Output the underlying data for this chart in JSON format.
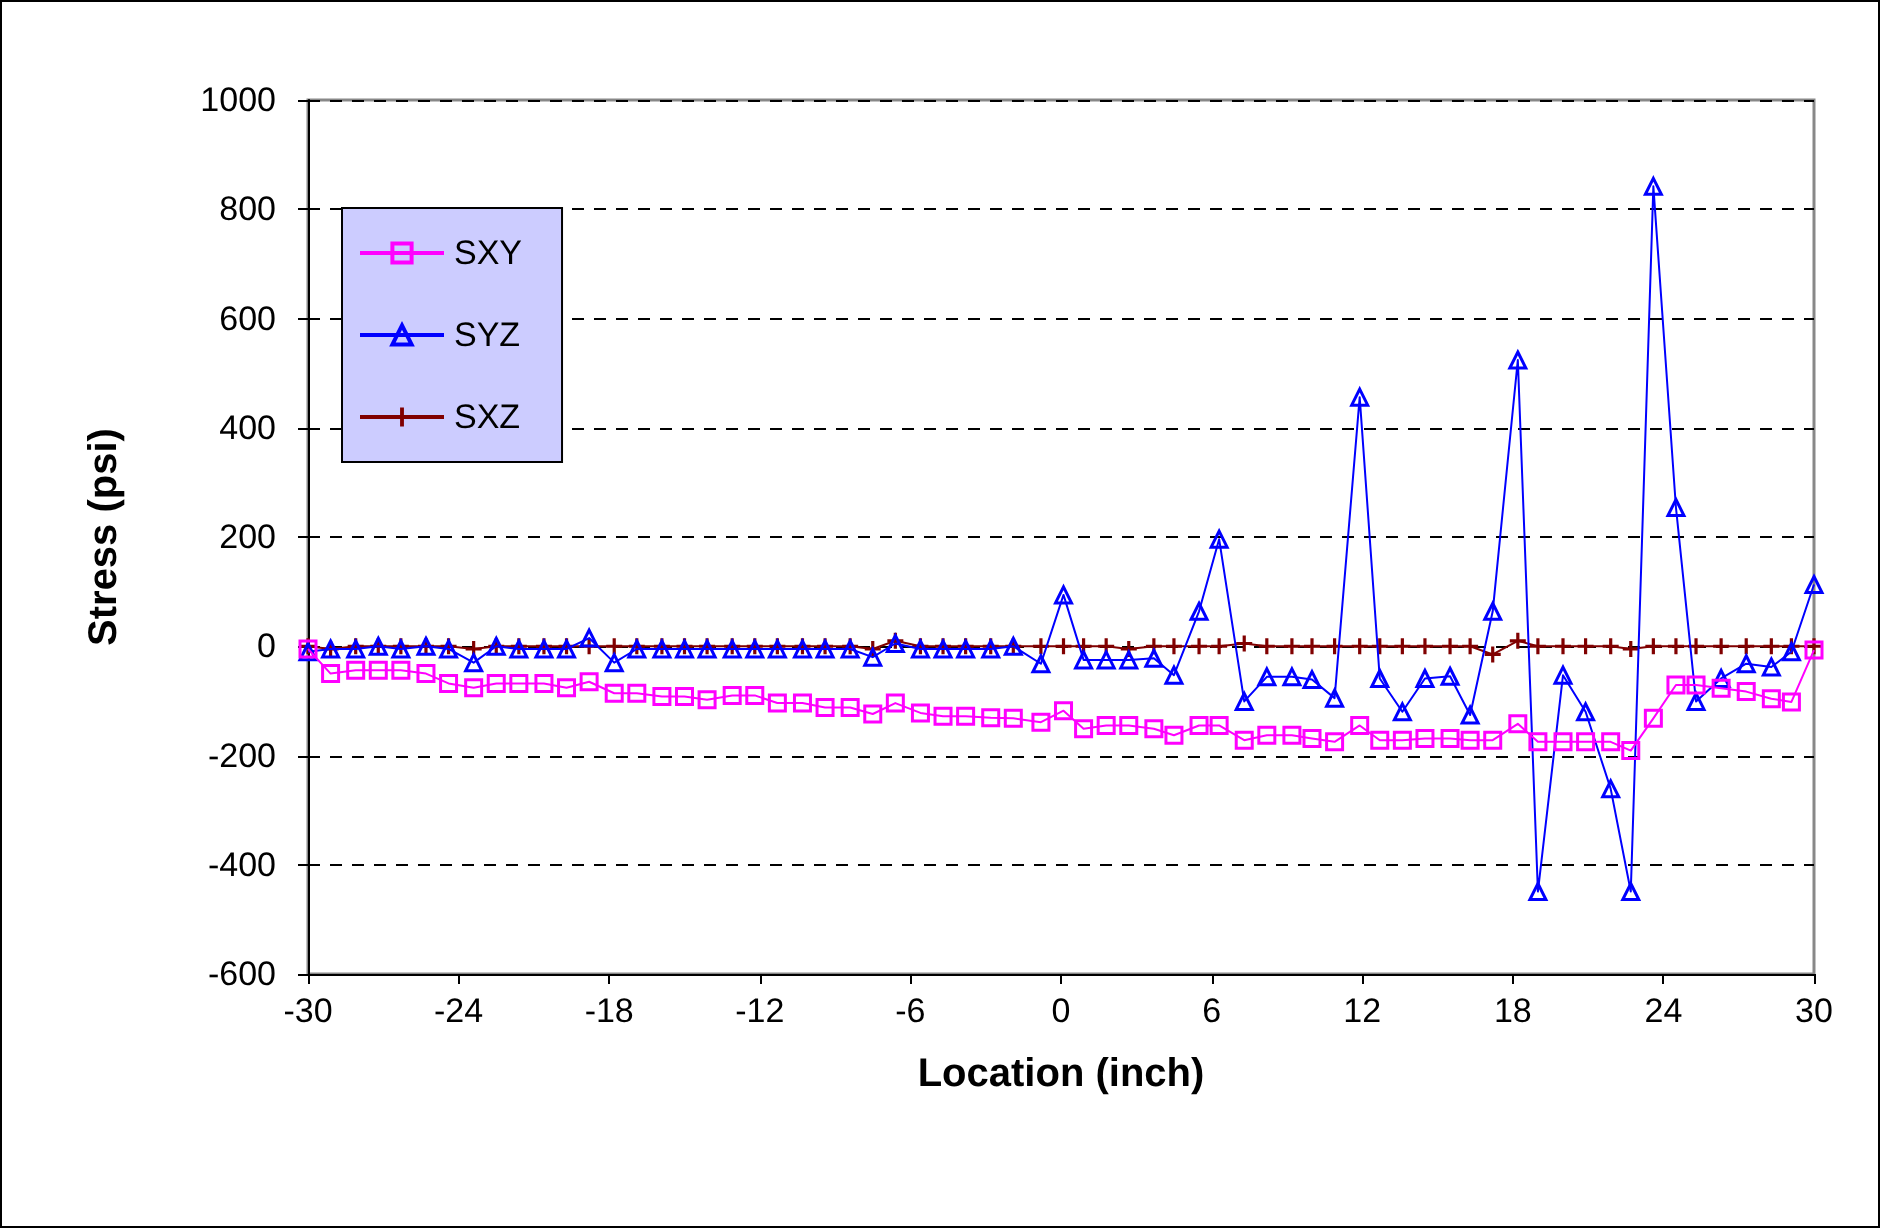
{
  "chart_data": {
    "type": "line",
    "xlabel": "Location (inch)",
    "ylabel": "Stress (psi)",
    "x": [
      -30,
      -29.1,
      -28.1,
      -27.2,
      -26.3,
      -25.3,
      -24.4,
      -23.4,
      -22.5,
      -21.6,
      -20.6,
      -19.7,
      -18.8,
      -17.8,
      -16.9,
      -15.9,
      -15,
      -14.1,
      -13.1,
      -12.2,
      -11.3,
      -10.3,
      -9.4,
      -8.4,
      -7.5,
      -6.6,
      -5.6,
      -4.7,
      -3.8,
      -2.8,
      -1.9,
      -0.8,
      0.1,
      0.9,
      1.8,
      2.7,
      3.7,
      4.5,
      5.5,
      6.3,
      7.3,
      8.2,
      9.2,
      10,
      10.9,
      11.9,
      12.7,
      13.6,
      14.5,
      15.5,
      16.3,
      17.2,
      18.2,
      19,
      20,
      20.9,
      21.9,
      22.7,
      23.6,
      24.5,
      25.3,
      26.3,
      27.3,
      28.3,
      29.1,
      30
    ],
    "series": [
      {
        "name": "SXY",
        "color": "#ff00ff",
        "marker": "square",
        "values": [
          -5,
          -50,
          -44,
          -44,
          -44,
          -50,
          -68,
          -76,
          -68,
          -68,
          -68,
          -76,
          -65,
          -86,
          -86,
          -92,
          -92,
          -98,
          -90,
          -90,
          -104,
          -104,
          -112,
          -112,
          -124,
          -104,
          -122,
          -128,
          -128,
          -131,
          -132,
          -139,
          -118,
          -151,
          -145,
          -145,
          -151,
          -163,
          -145,
          -145,
          -172,
          -163,
          -163,
          -169,
          -175,
          -145,
          -172,
          -172,
          -169,
          -169,
          -172,
          -172,
          -142,
          -175,
          -175,
          -175,
          -175,
          -191,
          -132,
          -71,
          -71,
          -77,
          -83,
          -96,
          -102,
          -7
        ]
      },
      {
        "name": "SYZ",
        "color": "#0000ff",
        "marker": "triangle",
        "values": [
          -10,
          -5,
          -5,
          0,
          -5,
          0,
          -5,
          -30,
          0,
          -5,
          -5,
          -5,
          15,
          -30,
          -5,
          -5,
          -5,
          -5,
          -5,
          -5,
          -5,
          -5,
          -5,
          -5,
          -20,
          5,
          -5,
          -5,
          -5,
          -5,
          0,
          -32,
          94,
          -25,
          -25,
          -25,
          -22,
          -53,
          64,
          196,
          -101,
          -56,
          -56,
          -61,
          -95,
          456,
          -59,
          -120,
          -59,
          -55,
          -126,
          64,
          524,
          -449,
          -53,
          -120,
          -261,
          -449,
          842,
          254,
          -101,
          -59,
          -32,
          -38,
          -10,
          113
        ]
      },
      {
        "name": "SXZ",
        "color": "#800000",
        "marker": "cross",
        "values": [
          0,
          -5,
          0,
          0,
          0,
          0,
          0,
          -5,
          0,
          0,
          0,
          0,
          0,
          0,
          0,
          0,
          0,
          0,
          0,
          0,
          0,
          0,
          0,
          0,
          -5,
          10,
          0,
          0,
          0,
          0,
          0,
          0,
          0,
          0,
          0,
          -5,
          0,
          0,
          0,
          0,
          5,
          0,
          0,
          0,
          0,
          0,
          0,
          0,
          0,
          0,
          0,
          -15,
          10,
          0,
          0,
          0,
          0,
          -5,
          0,
          0,
          0,
          0,
          0,
          0,
          0,
          0
        ]
      }
    ],
    "xlim": [
      -30,
      30
    ],
    "xticks": [
      -30,
      -24,
      -18,
      -12,
      -6,
      0,
      6,
      12,
      18,
      24,
      30
    ],
    "ylim": [
      -600,
      1000
    ],
    "yticks": [
      -600,
      -400,
      -200,
      0,
      200,
      400,
      600,
      800,
      1000
    ],
    "grid": "y",
    "legend": "top left",
    "line_style": "solid"
  }
}
